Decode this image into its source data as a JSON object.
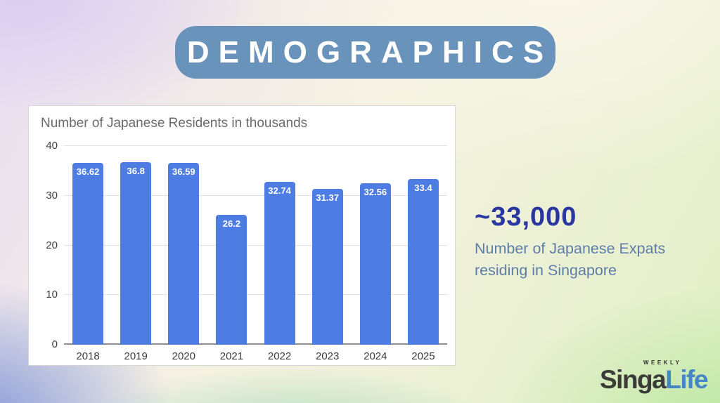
{
  "banner": {
    "title": "DEMOGRAPHICS",
    "bg_color": "#6a93bc",
    "text_color": "#ffffff"
  },
  "chart_data": {
    "type": "bar",
    "title": "Number of Japanese Residents in thousands",
    "categories": [
      "2018",
      "2019",
      "2020",
      "2021",
      "2022",
      "2023",
      "2024",
      "2025"
    ],
    "values": [
      36.62,
      36.8,
      36.59,
      26.2,
      32.74,
      31.37,
      32.56,
      33.4
    ],
    "bar_labels": [
      "36.62",
      "36.8",
      "36.59",
      "26.2",
      "32.74",
      "31.37",
      "32.56",
      "33.4"
    ],
    "xlabel": "",
    "ylabel": "",
    "ylim": [
      0,
      40
    ],
    "yticks": [
      0,
      10,
      20,
      30,
      40
    ],
    "grid": true,
    "legend": "none",
    "bar_color": "#4d7ce2",
    "bar_label_color": "#ffffff"
  },
  "callout": {
    "headline": "~33,000",
    "description": "Number of Japanese Expats residing in Singapore",
    "headline_color": "#2a37a0",
    "description_color": "#5d7ea9"
  },
  "logo": {
    "weekly": "WEEKLY",
    "part1": "Singa",
    "part2": "Life",
    "part1_color": "#3b3b39",
    "part2_color": "#4486c6"
  }
}
